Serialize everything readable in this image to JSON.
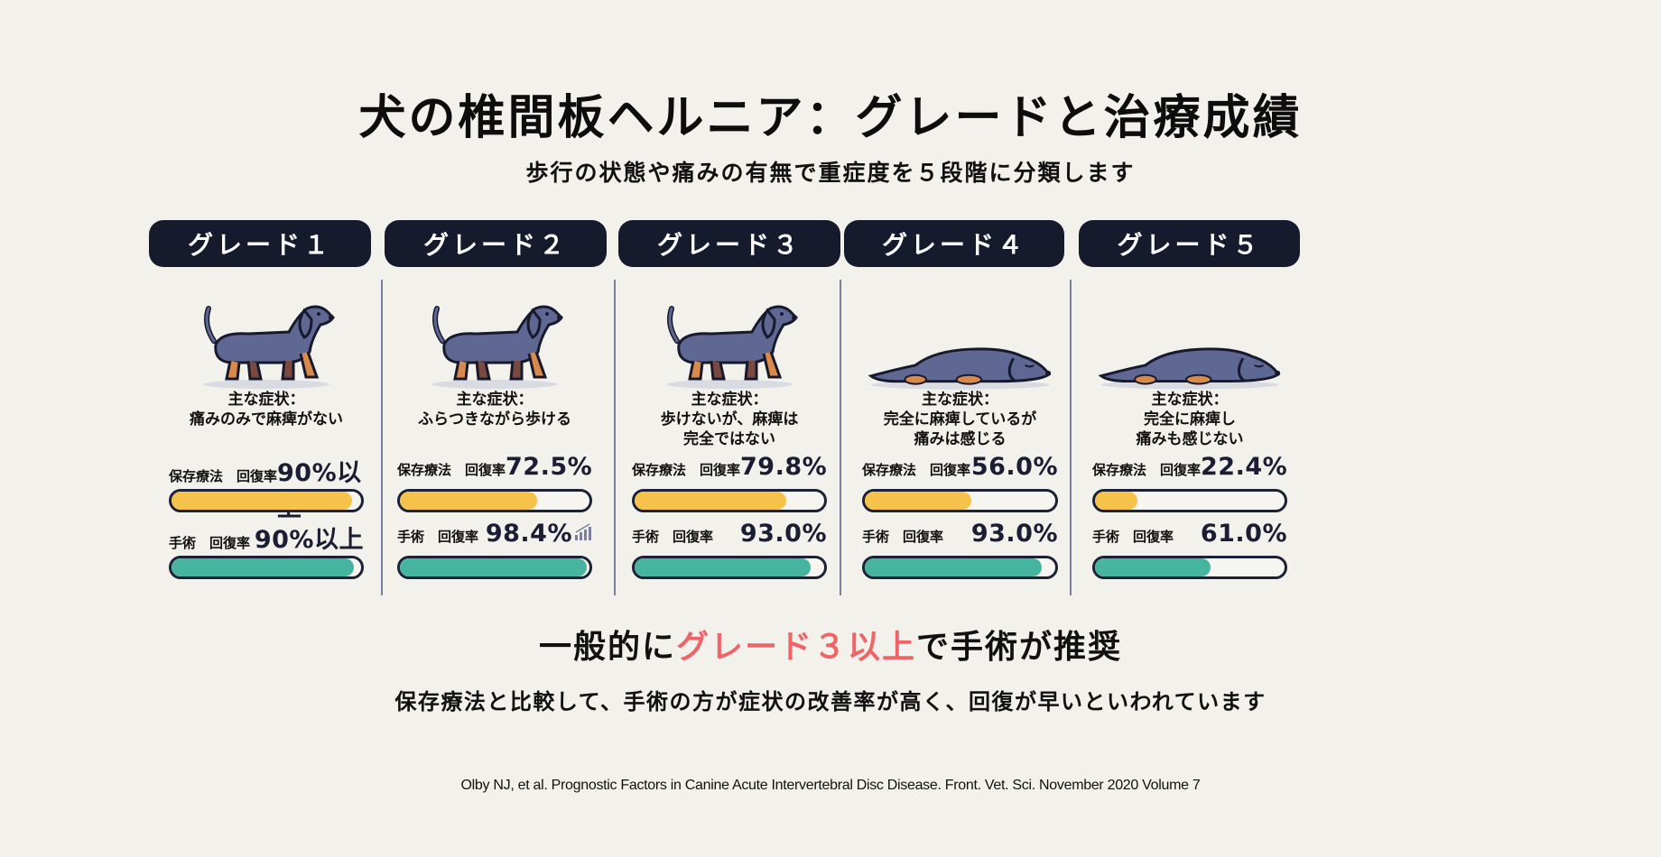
{
  "header": {
    "title": "犬の椎間板ヘルニア：グレードと治療成績",
    "subtitle": "歩行の状態や痛みの有無で重症度を５段階に分類します"
  },
  "labels": {
    "symptom_prefix": "主な症状：",
    "conservative": "保存療法　回復率",
    "surgery": "手術　回復率"
  },
  "colors": {
    "background": "#f3f1eb",
    "pill": "#151b2d",
    "conservative_bar": "#f6c24a",
    "surgery_bar": "#46b5a0",
    "highlight": "#f06468",
    "divider": "#7880a0"
  },
  "grades": [
    {
      "label": "グレード１",
      "symptom_lines": [
        "痛みのみで麻痺がない"
      ],
      "conservative_text": "90%以上",
      "surgery_text": "90%以上",
      "dog_pose": "standing-pain-icon"
    },
    {
      "label": "グレード２",
      "symptom_lines": [
        "ふらつきながら歩ける"
      ],
      "conservative_text": "72.5%",
      "surgery_text": "98.4%",
      "dog_pose": "wobbly-walking-icon"
    },
    {
      "label": "グレード３",
      "symptom_lines": [
        "歩けないが、麻痺は",
        "完全ではない"
      ],
      "conservative_text": "79.8%",
      "surgery_text": "93.0%",
      "dog_pose": "standing-weak-icon"
    },
    {
      "label": "グレード４",
      "symptom_lines": [
        "完全に麻痺しているが",
        "痛みは感じる"
      ],
      "conservative_text": "56.0%",
      "surgery_text": "93.0%",
      "dog_pose": "lying-down-icon"
    },
    {
      "label": "グレード５",
      "symptom_lines": [
        "完全に麻痺し",
        "痛みも感じない"
      ],
      "conservative_text": "22.4%",
      "surgery_text": "61.0%",
      "dog_pose": "lying-sad-icon"
    }
  ],
  "recommendation": {
    "prefix": "一般的に",
    "highlight": "グレード３以上",
    "suffix": "で手術が推奨"
  },
  "note": "保存療法と比較して、手術の方が症状の改善率が高く、回復が早いといわれています",
  "citation": "Olby NJ, et al. Prognostic Factors in Canine Acute Intervertebral Disc Disease. Front. Vet. Sci. November 2020 Volume 7",
  "chart_data": {
    "type": "bar",
    "orientation": "horizontal",
    "title": "犬の椎間板ヘルニア：グレードと治療成績",
    "subtitle": "歩行の状態や痛みの有無で重症度を５段階に分類します",
    "categories": [
      "グレード１",
      "グレード２",
      "グレード３",
      "グレード４",
      "グレード５"
    ],
    "series": [
      {
        "name": "保存療法 回復率",
        "values": [
          90,
          72.5,
          79.8,
          56.0,
          22.4
        ],
        "labels": [
          "90%以上",
          "72.5%",
          "79.8%",
          "56.0%",
          "22.4%"
        ],
        "color": "#f6c24a"
      },
      {
        "name": "手術 回復率",
        "values": [
          90,
          98.4,
          93.0,
          93.0,
          61.0
        ],
        "labels": [
          "90%以上",
          "98.4%",
          "93.0%",
          "93.0%",
          "61.0%"
        ],
        "color": "#46b5a0"
      }
    ],
    "unit": "%",
    "xlim": [
      0,
      100
    ],
    "grid": false,
    "legend": "inline labels per bar",
    "annotations": [
      "一般的にグレード３以上で手術が推奨",
      "保存療法と比較して、手術の方が症状の改善率が高く、回復が早いといわれています"
    ],
    "source": "Olby NJ, et al. Prognostic Factors in Canine Acute Intervertebral Disc Disease. Front. Vet. Sci. November 2020 Volume 7"
  }
}
